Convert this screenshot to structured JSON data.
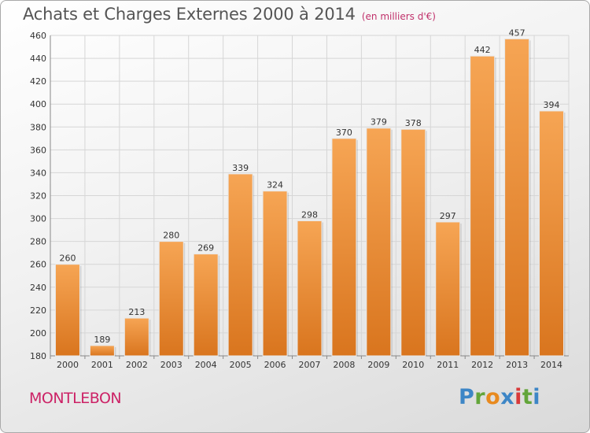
{
  "title": "Achats et Charges Externes 2000 à 2014",
  "subtitle": "(en milliers d'€)",
  "location": "MONTLEBON",
  "logo": [
    "P",
    "r",
    "o",
    "x",
    "i",
    "t",
    "i"
  ],
  "colors": {
    "bar_light": "#f6a554",
    "bar_dark": "#d9751e",
    "grid": "#d6d6d6",
    "title": "#555555",
    "location": "#cc2266"
  },
  "chart_data": {
    "type": "bar",
    "categories": [
      "2000",
      "2001",
      "2002",
      "2003",
      "2004",
      "2005",
      "2006",
      "2007",
      "2008",
      "2009",
      "2010",
      "2011",
      "2012",
      "2013",
      "2014"
    ],
    "values": [
      260,
      189,
      213,
      280,
      269,
      339,
      324,
      298,
      370,
      379,
      378,
      297,
      442,
      457,
      394
    ],
    "title": "Achats et Charges Externes 2000 à 2014",
    "xlabel": "",
    "ylabel": "",
    "ylim": [
      180,
      460
    ],
    "yticks": [
      180,
      200,
      220,
      240,
      260,
      280,
      300,
      320,
      340,
      360,
      380,
      400,
      420,
      440,
      460
    ],
    "grid": true,
    "data_labels": true
  }
}
